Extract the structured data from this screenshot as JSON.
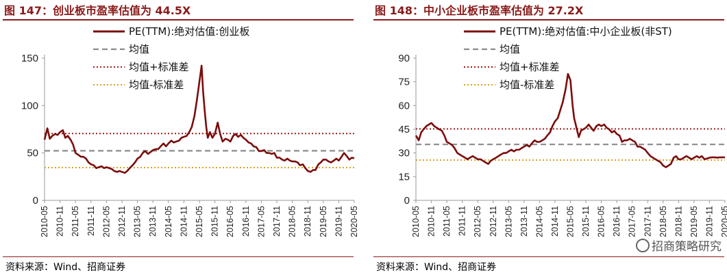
{
  "charts": [
    {
      "title": "图 147：创业板市盈率估值为 44.5X",
      "source": "资料来源：Wind、招商证券"
    },
    {
      "title": "图 148：中小企业板市盈率估值为 27.2X",
      "source": "资料来源：Wind、招商证券",
      "watermark": "招商策略研究"
    }
  ],
  "colors": {
    "title": "#8b1a1a",
    "pe_line": "#7b0c0c",
    "mean_line": "#8a8a8a",
    "plus_std_line": "#9b1b1b",
    "minus_std_line": "#d4a020"
  },
  "chart_data": [
    {
      "type": "line",
      "title": "",
      "x_ticks": [
        "2010-05",
        "2010-11",
        "2011-05",
        "2011-11",
        "2012-05",
        "2012-11",
        "2013-05",
        "2013-11",
        "2014-05",
        "2014-11",
        "2015-05",
        "2015-11",
        "2016-05",
        "2016-11",
        "2017-05",
        "2017-11",
        "2018-05",
        "2018-11",
        "2019-05",
        "2019-11",
        "2020-05"
      ],
      "y_ticks": [
        0,
        50,
        100,
        150
      ],
      "ylim": [
        0,
        150
      ],
      "grid": false,
      "legend_position": "top",
      "series": [
        {
          "name": "PE(TTM):绝对估值:创业板",
          "x": [
            2010.33,
            2010.42,
            2010.5,
            2010.58,
            2010.67,
            2010.75,
            2010.83,
            2010.92,
            2011.0,
            2011.08,
            2011.17,
            2011.25,
            2011.33,
            2011.42,
            2011.5,
            2011.58,
            2011.67,
            2011.75,
            2011.83,
            2011.92,
            2012.0,
            2012.08,
            2012.17,
            2012.25,
            2012.33,
            2012.42,
            2012.5,
            2012.58,
            2012.67,
            2012.75,
            2012.83,
            2012.92,
            2013.0,
            2013.08,
            2013.17,
            2013.25,
            2013.33,
            2013.42,
            2013.5,
            2013.58,
            2013.67,
            2013.75,
            2013.83,
            2013.92,
            2014.0,
            2014.08,
            2014.17,
            2014.25,
            2014.33,
            2014.42,
            2014.5,
            2014.58,
            2014.67,
            2014.75,
            2014.83,
            2014.92,
            2015.0,
            2015.08,
            2015.17,
            2015.25,
            2015.33,
            2015.4,
            2015.45,
            2015.5,
            2015.55,
            2015.6,
            2015.67,
            2015.75,
            2015.83,
            2015.92,
            2016.0,
            2016.08,
            2016.17,
            2016.25,
            2016.33,
            2016.42,
            2016.5,
            2016.58,
            2016.67,
            2016.75,
            2016.83,
            2016.92,
            2017.0,
            2017.08,
            2017.17,
            2017.25,
            2017.33,
            2017.42,
            2017.5,
            2017.58,
            2017.67,
            2017.75,
            2017.83,
            2017.92,
            2018.0,
            2018.08,
            2018.17,
            2018.25,
            2018.33,
            2018.42,
            2018.5,
            2018.58,
            2018.67,
            2018.75,
            2018.83,
            2018.92,
            2019.0,
            2019.08,
            2019.17,
            2019.25,
            2019.33,
            2019.42,
            2019.5,
            2019.58,
            2019.67,
            2019.75,
            2019.83,
            2019.92,
            2020.0,
            2020.08,
            2020.17,
            2020.25,
            2020.33
          ],
          "y": [
            64,
            76,
            65,
            68,
            70,
            69,
            72,
            74,
            66,
            68,
            64,
            59,
            50,
            48,
            46,
            46,
            44,
            40,
            38,
            37,
            34,
            35,
            36,
            34,
            35,
            34,
            33,
            31,
            30,
            31,
            30,
            29,
            31,
            34,
            37,
            40,
            44,
            46,
            50,
            52,
            49,
            51,
            53,
            54,
            54,
            57,
            60,
            57,
            60,
            63,
            61,
            62,
            63,
            66,
            67,
            68,
            72,
            77,
            89,
            106,
            125,
            142,
            115,
            95,
            78,
            66,
            72,
            66,
            70,
            82,
            70,
            62,
            65,
            64,
            62,
            68,
            70,
            67,
            69,
            66,
            64,
            61,
            60,
            57,
            56,
            52,
            52,
            53,
            50,
            50,
            49,
            50,
            45,
            45,
            43,
            42,
            44,
            42,
            41,
            41,
            40,
            37,
            38,
            34,
            31,
            30,
            32,
            32,
            38,
            40,
            43,
            43,
            41,
            40,
            42,
            44,
            42,
            46,
            50,
            47,
            43,
            45,
            44.5
          ]
        },
        {
          "name": "均值",
          "value": 52.3
        },
        {
          "name": "均值+标准差",
          "value": 70.5
        },
        {
          "name": "均值-标准差",
          "value": 34.5
        }
      ]
    },
    {
      "type": "line",
      "title": "",
      "x_ticks": [
        "2010-05",
        "2010-11",
        "2011-05",
        "2011-11",
        "2012-05",
        "2012-11",
        "2013-05",
        "2013-11",
        "2014-05",
        "2014-11",
        "2015-05",
        "2015-11",
        "2016-05",
        "2016-11",
        "2017-05",
        "2017-11",
        "2018-05",
        "2018-11",
        "2019-05",
        "2019-11",
        "2020-05"
      ],
      "y_ticks": [
        0,
        15,
        30,
        45,
        60,
        75,
        90
      ],
      "ylim": [
        0,
        90
      ],
      "grid": false,
      "legend_position": "top",
      "series": [
        {
          "name": "PE(TTM):绝对估值:中小企业板(非ST)",
          "x": [
            2010.33,
            2010.42,
            2010.5,
            2010.58,
            2010.67,
            2010.75,
            2010.83,
            2010.92,
            2011.0,
            2011.08,
            2011.17,
            2011.25,
            2011.33,
            2011.42,
            2011.5,
            2011.58,
            2011.67,
            2011.75,
            2011.83,
            2011.92,
            2012.0,
            2012.08,
            2012.17,
            2012.25,
            2012.33,
            2012.42,
            2012.5,
            2012.58,
            2012.67,
            2012.75,
            2012.83,
            2012.92,
            2013.0,
            2013.08,
            2013.17,
            2013.25,
            2013.33,
            2013.42,
            2013.5,
            2013.58,
            2013.67,
            2013.75,
            2013.83,
            2013.92,
            2014.0,
            2014.08,
            2014.17,
            2014.25,
            2014.33,
            2014.42,
            2014.5,
            2014.58,
            2014.67,
            2014.75,
            2014.83,
            2014.92,
            2015.0,
            2015.08,
            2015.17,
            2015.25,
            2015.33,
            2015.4,
            2015.45,
            2015.5,
            2015.55,
            2015.6,
            2015.67,
            2015.75,
            2015.83,
            2015.92,
            2016.0,
            2016.08,
            2016.17,
            2016.25,
            2016.33,
            2016.42,
            2016.5,
            2016.58,
            2016.67,
            2016.75,
            2016.83,
            2016.92,
            2017.0,
            2017.08,
            2017.17,
            2017.25,
            2017.33,
            2017.42,
            2017.5,
            2017.58,
            2017.67,
            2017.75,
            2017.83,
            2017.92,
            2018.0,
            2018.08,
            2018.17,
            2018.25,
            2018.33,
            2018.42,
            2018.5,
            2018.58,
            2018.67,
            2018.75,
            2018.83,
            2018.92,
            2019.0,
            2019.08,
            2019.17,
            2019.25,
            2019.33,
            2019.42,
            2019.5,
            2019.58,
            2019.67,
            2019.75,
            2019.83,
            2019.92,
            2020.0,
            2020.08,
            2020.17,
            2020.25,
            2020.33
          ],
          "y": [
            41,
            38,
            43,
            45,
            47,
            48,
            49,
            47,
            46,
            45,
            44,
            41,
            37,
            36,
            35,
            33,
            30,
            29,
            28,
            27,
            26,
            27,
            28,
            27,
            26,
            26,
            25,
            24,
            23,
            25,
            26,
            27,
            28,
            29,
            30,
            30,
            31,
            32,
            31,
            32,
            32,
            33,
            34,
            35,
            34,
            36,
            38,
            37,
            37,
            38,
            39,
            41,
            43,
            47,
            50,
            52,
            57,
            62,
            70,
            80,
            76,
            60,
            52,
            48,
            44,
            40,
            44,
            45,
            46,
            48,
            46,
            44,
            47,
            48,
            47,
            48,
            46,
            45,
            43,
            44,
            42,
            41,
            37,
            38,
            38,
            39,
            38,
            37,
            34,
            34,
            33,
            32,
            30,
            28,
            27,
            26,
            25,
            24,
            22,
            21,
            22,
            23,
            27,
            28,
            26,
            26,
            27,
            28,
            27,
            26,
            27,
            28,
            27,
            28,
            26,
            26.5,
            27,
            27.2,
            27.2,
            27,
            27.2,
            27.2,
            27.2
          ]
        },
        {
          "name": "均值",
          "value": 35.4
        },
        {
          "name": "均值+标准差",
          "value": 45.2
        },
        {
          "name": "均值-标准差",
          "value": 25.5
        }
      ]
    }
  ]
}
